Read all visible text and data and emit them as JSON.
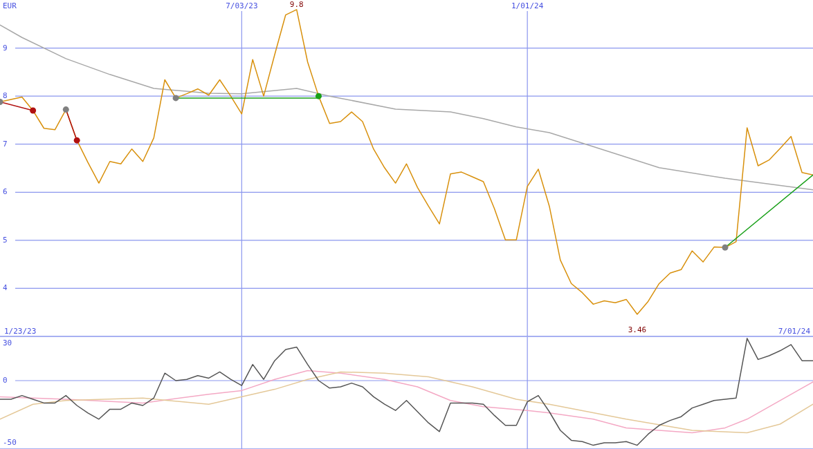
{
  "chart_data": [
    {
      "type": "line",
      "ylabel": "EUR",
      "x": [
        "2023-01-30",
        "2023-02-06",
        "2023-02-13",
        "2023-02-20",
        "2023-02-27",
        "2023-03-06",
        "2023-03-13",
        "2023-03-20",
        "2023-03-27",
        "2023-04-03",
        "2023-04-10",
        "2023-04-17",
        "2023-04-24",
        "2023-05-01",
        "2023-05-08",
        "2023-05-15",
        "2023-05-22",
        "2023-05-29",
        "2023-06-05",
        "2023-06-12",
        "2023-06-19",
        "2023-06-26",
        "2023-07-03",
        "2023-07-10",
        "2023-07-17",
        "2023-07-24",
        "2023-07-31",
        "2023-08-07",
        "2023-08-14",
        "2023-08-21",
        "2023-08-28",
        "2023-09-04",
        "2023-09-11",
        "2023-09-18",
        "2023-09-25",
        "2023-10-02",
        "2023-10-09",
        "2023-10-16",
        "2023-10-23",
        "2023-10-30",
        "2023-11-06",
        "2023-11-13",
        "2023-11-20",
        "2023-11-27",
        "2023-12-04",
        "2023-12-11",
        "2023-12-18",
        "2023-12-25",
        "2024-01-01",
        "2024-01-08",
        "2024-01-15",
        "2024-01-22",
        "2024-01-29",
        "2024-02-05",
        "2024-02-12",
        "2024-02-19",
        "2024-02-26",
        "2024-03-04",
        "2024-03-11",
        "2024-03-18",
        "2024-03-25",
        "2024-04-01",
        "2024-04-08",
        "2024-04-15",
        "2024-04-22",
        "2024-04-29",
        "2024-05-06",
        "2024-05-13",
        "2024-05-20",
        "2024-05-27",
        "2024-06-03",
        "2024-06-10",
        "2024-06-17",
        "2024-06-24",
        "2024-07-01"
      ],
      "xlim": [
        "2023-01-30",
        "2024-07-01"
      ],
      "xticks": [
        {
          "value": "2023-07-03",
          "label": "7/03/23"
        },
        {
          "value": "2024-01-01",
          "label": "1/01/24"
        }
      ],
      "ylim": [
        3,
        10
      ],
      "yticks": [
        4,
        5,
        6,
        7,
        8,
        9
      ],
      "grid": true,
      "series": [
        {
          "color": "#a8a8a8",
          "x": [
            "2023-01-30",
            "2023-02-13",
            "2023-03-13",
            "2023-04-10",
            "2023-05-08",
            "2023-06-12",
            "2023-07-03",
            "2023-08-07",
            "2023-08-28",
            "2023-10-09",
            "2023-11-13",
            "2023-12-04",
            "2023-12-25",
            "2024-01-15",
            "2024-02-12",
            "2024-03-25",
            "2024-05-06",
            "2024-07-01"
          ],
          "values": [
            9.48,
            9.22,
            8.78,
            8.45,
            8.16,
            8.06,
            8.05,
            8.16,
            8.0,
            7.73,
            7.67,
            7.53,
            7.36,
            7.24,
            6.95,
            6.51,
            6.29,
            6.05
          ]
        },
        {
          "color": "#d8900c",
          "values": [
            7.88,
            7.93,
            7.98,
            7.7,
            7.33,
            7.3,
            7.72,
            7.08,
            6.62,
            6.19,
            6.64,
            6.59,
            6.9,
            6.64,
            7.13,
            8.34,
            7.96,
            8.05,
            8.15,
            8.02,
            8.34,
            8.0,
            7.63,
            8.76,
            8.0,
            8.86,
            9.69,
            9.8,
            8.71,
            8.0,
            7.43,
            7.47,
            7.67,
            7.47,
            6.9,
            6.51,
            6.19,
            6.59,
            6.1,
            5.71,
            5.34,
            6.38,
            6.42,
            6.32,
            6.22,
            5.66,
            5.01,
            5.01,
            6.12,
            6.48,
            5.71,
            4.59,
            4.1,
            3.91,
            3.67,
            3.74,
            3.7,
            3.77,
            3.46,
            3.73,
            4.1,
            4.32,
            4.39,
            4.78,
            4.55,
            4.86,
            4.85,
            4.97,
            7.34,
            6.55,
            6.67,
            6.91,
            7.16,
            6.41,
            6.36
          ]
        },
        {
          "color": "#b01010",
          "x": [
            "2023-01-30",
            "2023-02-20"
          ],
          "values": [
            7.88,
            7.7
          ]
        },
        {
          "color": "#b01010",
          "x": [
            "2023-03-13",
            "2023-03-20"
          ],
          "values": [
            7.72,
            7.08
          ]
        },
        {
          "color": "#18a018",
          "x": [
            "2023-05-22",
            "2023-08-21"
          ],
          "values": [
            7.96,
            7.96
          ]
        },
        {
          "color": "#18a018",
          "x": [
            "2024-05-06",
            "2024-07-01"
          ],
          "values": [
            4.85,
            6.36
          ]
        },
        {
          "type": "scatter",
          "x": [
            "2023-01-30",
            "2023-03-13",
            "2023-05-22",
            "2024-05-06",
            "2023-02-20",
            "2023-03-20",
            "2023-08-21"
          ],
          "values": [
            7.88,
            7.72,
            7.96,
            4.85,
            7.7,
            7.08,
            8.0
          ],
          "colors": [
            "#808080",
            "#808080",
            "#808080",
            "#808080",
            "#b01010",
            "#b01010",
            "#18a018"
          ]
        }
      ],
      "annotations": [
        "1/23/23",
        "7/01/24",
        {
          "text": "9.8",
          "x": "2023-08-07",
          "y": 9.8
        },
        {
          "text": "3.46",
          "x": "2024-03-11",
          "y": 3.46
        }
      ]
    },
    {
      "type": "line",
      "x": [
        "2023-01-30",
        "2023-02-06",
        "2023-02-13",
        "2023-02-20",
        "2023-02-27",
        "2023-03-06",
        "2023-03-13",
        "2023-03-20",
        "2023-03-27",
        "2023-04-03",
        "2023-04-10",
        "2023-04-17",
        "2023-04-24",
        "2023-05-01",
        "2023-05-08",
        "2023-05-15",
        "2023-05-22",
        "2023-05-29",
        "2023-06-05",
        "2023-06-12",
        "2023-06-19",
        "2023-06-26",
        "2023-07-03",
        "2023-07-10",
        "2023-07-17",
        "2023-07-24",
        "2023-07-31",
        "2023-08-07",
        "2023-08-14",
        "2023-08-21",
        "2023-08-28",
        "2023-09-04",
        "2023-09-11",
        "2023-09-18",
        "2023-09-25",
        "2023-10-02",
        "2023-10-09",
        "2023-10-16",
        "2023-10-23",
        "2023-10-30",
        "2023-11-06",
        "2023-11-13",
        "2023-11-20",
        "2023-11-27",
        "2023-12-04",
        "2023-12-11",
        "2023-12-18",
        "2023-12-25",
        "2024-01-01",
        "2024-01-08",
        "2024-01-15",
        "2024-01-22",
        "2024-01-29",
        "2024-02-05",
        "2024-02-12",
        "2024-02-19",
        "2024-02-26",
        "2024-03-04",
        "2024-03-11",
        "2024-03-18",
        "2024-03-25",
        "2024-04-01",
        "2024-04-08",
        "2024-04-15",
        "2024-04-22",
        "2024-04-29",
        "2024-05-06",
        "2024-05-13",
        "2024-05-20",
        "2024-05-27",
        "2024-06-03",
        "2024-06-10",
        "2024-06-17",
        "2024-06-24",
        "2024-07-01"
      ],
      "xlim": [
        "2023-01-30",
        "2024-07-01"
      ],
      "xticks": [
        {
          "value": "2023-07-03",
          "label": null
        },
        {
          "value": "2024-01-01",
          "label": null
        }
      ],
      "tick_labels": "y",
      "ylim": [
        -55,
        35
      ],
      "yticks": [
        30,
        0,
        -50
      ],
      "grid": "x",
      "ref_lines": [
        {
          "axis": "y",
          "value": 0
        }
      ],
      "series": [
        {
          "color": "#f4a8c4",
          "x": [
            "2023-01-30",
            "2023-03-13",
            "2023-05-01",
            "2023-06-12",
            "2023-07-03",
            "2023-07-24",
            "2023-08-14",
            "2023-09-04",
            "2023-10-02",
            "2023-10-23",
            "2023-11-13",
            "2023-12-04",
            "2024-01-01",
            "2024-01-15",
            "2024-02-12",
            "2024-03-04",
            "2024-03-25",
            "2024-04-15",
            "2024-05-06",
            "2024-05-20",
            "2024-06-10",
            "2024-07-01"
          ],
          "values": [
            -13,
            -15,
            -18,
            -11,
            -8,
            1,
            8,
            6,
            1,
            -5,
            -16,
            -21,
            -24,
            -26,
            -31,
            -38,
            -40,
            -42,
            -38,
            -31,
            -16,
            -1
          ]
        },
        {
          "color": "#e4c898",
          "x": [
            "2023-01-30",
            "2023-02-20",
            "2023-03-13",
            "2023-05-01",
            "2023-06-12",
            "2023-07-24",
            "2023-08-14",
            "2023-09-04",
            "2023-10-02",
            "2023-10-30",
            "2023-11-27",
            "2023-12-25",
            "2024-01-15",
            "2024-03-04",
            "2024-04-15",
            "2024-05-20",
            "2024-06-10",
            "2024-07-01"
          ],
          "values": [
            -31,
            -19,
            -16,
            -14,
            -19,
            -7,
            1,
            7,
            6,
            3,
            -5,
            -15,
            -19,
            -31,
            -40,
            -42,
            -35,
            -19
          ]
        },
        {
          "color": "#555555",
          "values": [
            -15,
            -15,
            -12,
            -15,
            -18,
            -18,
            -12,
            -20,
            -26,
            -31,
            -23,
            -23,
            -18,
            -20,
            -14,
            6,
            0,
            1,
            4,
            2,
            7,
            1,
            -4,
            13,
            1,
            16,
            25,
            27,
            13,
            0,
            -6,
            -5,
            -2,
            -5,
            -13,
            -19,
            -24,
            -16,
            -25,
            -34,
            -41,
            -18,
            -18,
            -18,
            -19,
            -28,
            -36,
            -36,
            -17,
            -12,
            -25,
            -40,
            -48,
            -49,
            -52,
            -50,
            -50,
            -49,
            -52,
            -43,
            -36,
            -32,
            -29,
            -22,
            -19,
            -16,
            -15,
            -14,
            34,
            17,
            20,
            24,
            29,
            16,
            16
          ]
        }
      ]
    }
  ]
}
